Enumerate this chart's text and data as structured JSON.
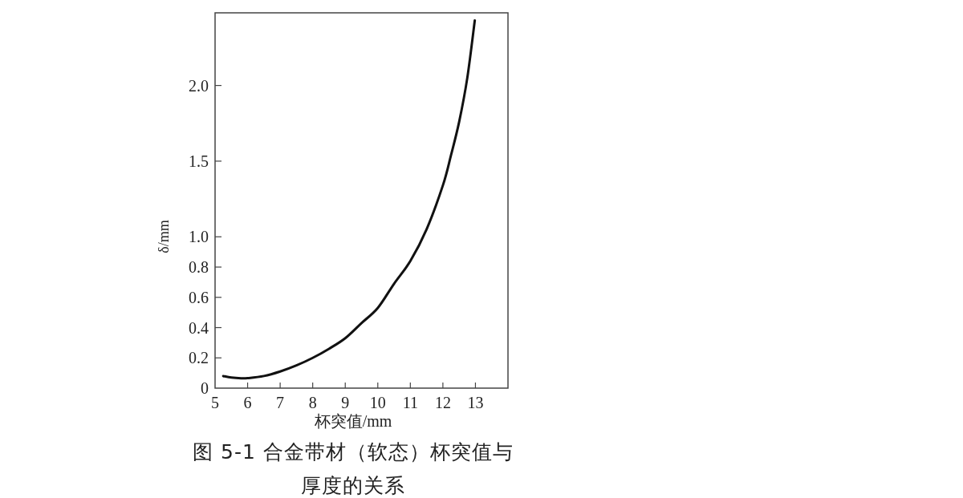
{
  "chart_data": {
    "type": "line",
    "title": "图 5-1 合金带材（软态）杯突值与厚度的关系",
    "xlabel": "杯突值/mm",
    "ylabel": "δ/mm",
    "color": "#111111",
    "x": [
      5.25,
      5.5,
      5.8,
      6,
      6.5,
      7,
      7.5,
      8,
      8.5,
      9,
      9.5,
      10,
      10.5,
      11,
      11.5,
      12,
      12.25,
      12.5,
      12.75,
      12.98
    ],
    "values": [
      0.08,
      0.07,
      0.065,
      0.066,
      0.08,
      0.11,
      0.15,
      0.2,
      0.26,
      0.33,
      0.43,
      0.53,
      0.69,
      0.84,
      1.05,
      1.34,
      1.54,
      1.76,
      2.05,
      2.43
    ],
    "xlim": [
      5,
      14
    ],
    "xticks": [
      5,
      6,
      7,
      8,
      9,
      10,
      11,
      12,
      13
    ],
    "ylim": [
      0,
      2.48
    ],
    "yticks": [
      0,
      0.2,
      0.4,
      0.6,
      0.8,
      {
        "value": 1,
        "label": "1.0"
      },
      1.5,
      {
        "value": 2,
        "label": "2.0"
      }
    ]
  }
}
